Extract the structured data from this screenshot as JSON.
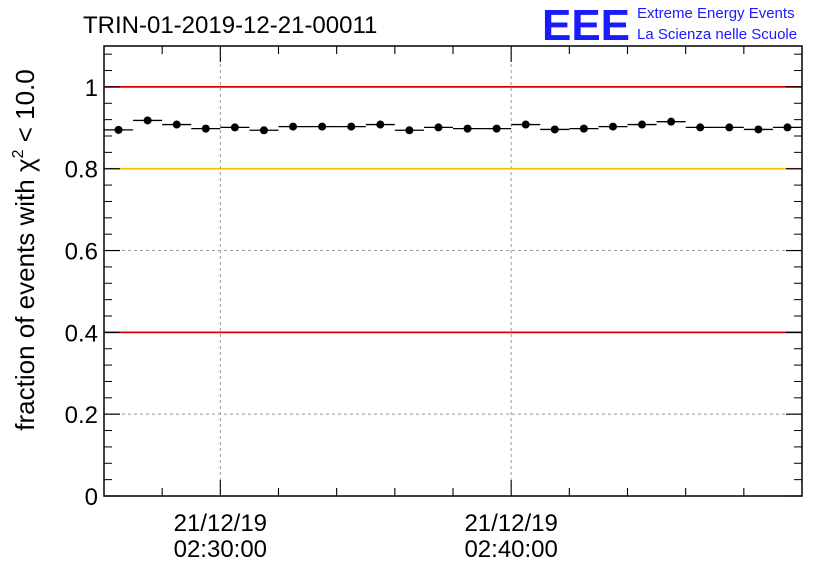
{
  "chart_data": {
    "type": "scatter",
    "title": "TRIN-01-2019-12-21-00011",
    "xlabel": "",
    "ylabel": "fraction of events with χ² < 10.0",
    "ylabel_parts": {
      "pre": "fraction of events with χ",
      "sup": "2",
      "post": " < 10.0"
    },
    "x_unit": "minutes since 02:26:00",
    "xlim": [
      0,
      24
    ],
    "ylim": [
      0,
      1.1
    ],
    "grid": true,
    "y_ticks": [
      0,
      0.2,
      0.4,
      0.6,
      0.8,
      1
    ],
    "y_tick_labels": [
      "0",
      "0.2",
      "0.4",
      "0.6",
      "0.8",
      "1"
    ],
    "x_ticks": [
      {
        "x": 4,
        "date": "21/12/19",
        "time": "02:30:00"
      },
      {
        "x": 14,
        "date": "21/12/19",
        "time": "02:40:00"
      }
    ],
    "x_minor_step": 2,
    "bin_width": 1,
    "reference_lines": [
      {
        "y": 1.0,
        "color": "#e00000"
      },
      {
        "y": 0.8,
        "color": "#f5c000"
      },
      {
        "y": 0.4,
        "color": "#e00000"
      }
    ],
    "series": [
      {
        "name": "fraction",
        "x": [
          0.5,
          1.5,
          2.5,
          3.5,
          4.5,
          5.5,
          6.5,
          7.5,
          8.5,
          9.5,
          10.5,
          11.5,
          12.5,
          13.5,
          14.5,
          15.5,
          16.5,
          17.5,
          18.5,
          19.5,
          20.5,
          21.5,
          22.5,
          23.5
        ],
        "values": [
          0.895,
          0.918,
          0.908,
          0.898,
          0.901,
          0.894,
          0.903,
          0.903,
          0.903,
          0.908,
          0.894,
          0.901,
          0.898,
          0.898,
          0.908,
          0.896,
          0.898,
          0.903,
          0.908,
          0.915,
          0.901,
          0.901,
          0.896,
          0.901
        ]
      }
    ]
  },
  "logo": {
    "text": "EEE",
    "line1": "Extreme Energy Events",
    "line2": "La Scienza nelle Scuole",
    "color": "#1a1aff"
  }
}
